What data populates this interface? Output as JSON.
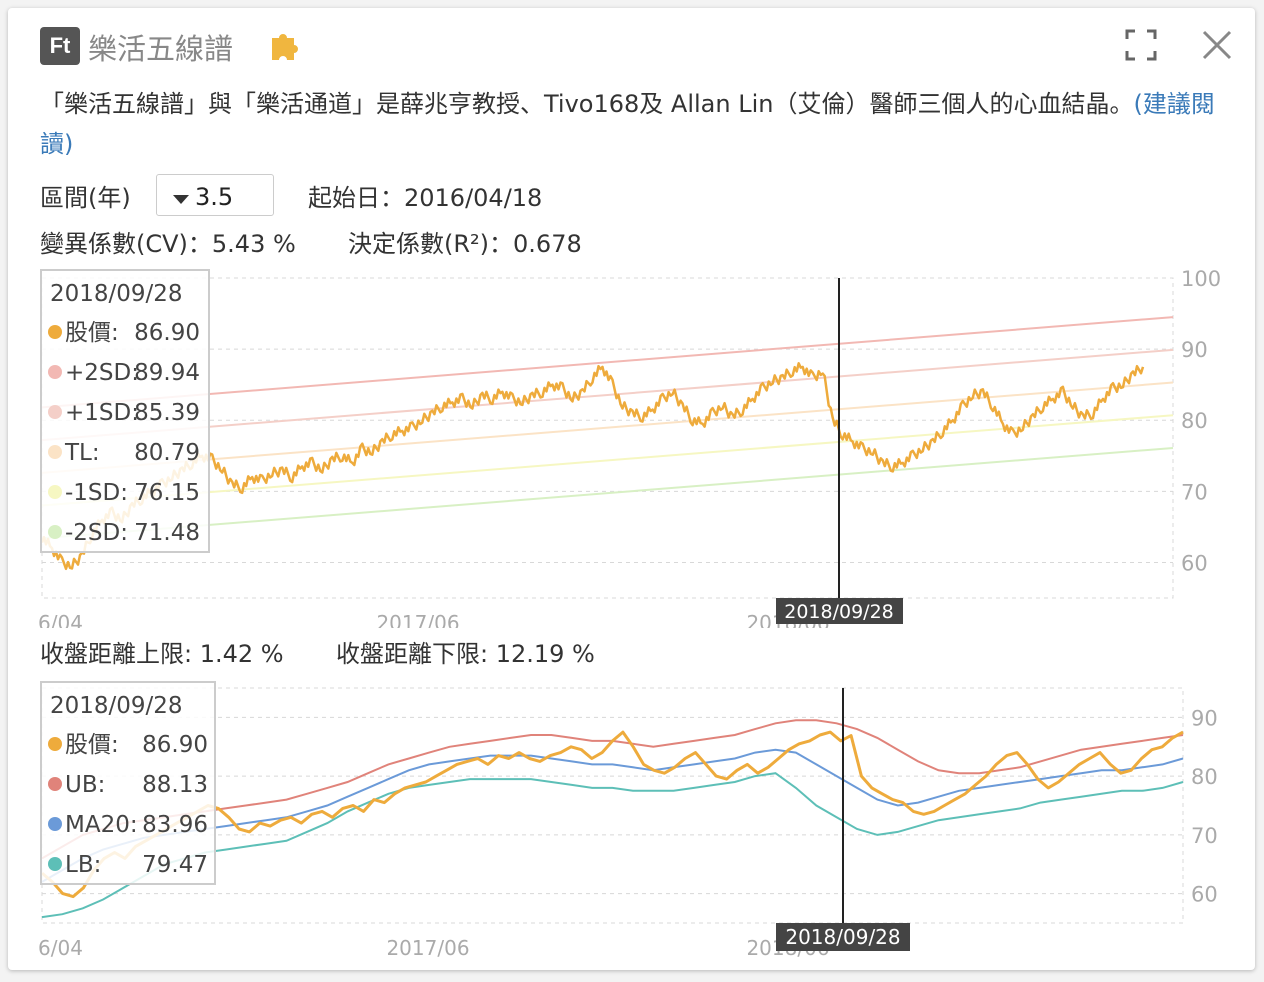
{
  "header": {
    "logo_text": "Ft",
    "title": "樂活五線譜",
    "puzzle_icon": "puzzle-icon",
    "expand_icon": "expand-icon",
    "close_icon": "close-icon"
  },
  "description": {
    "text": "「樂活五線譜」與「樂活通道」是薛兆亨教授、Tivo168及 Allan Lin（艾倫）醫師三個人的心血結晶。",
    "link": "(建議閱讀)"
  },
  "controls": {
    "period_label": "區間(年)",
    "period_value": "3.5",
    "start_label": "起始日：2016/04/18",
    "cv_label": "變異係數(CV)：5.43 %",
    "r2_label": "決定係數(R²)：0.678",
    "upper_label": "收盤距離上限: 1.42 %",
    "lower_label": "收盤距離下限: 12.19 %"
  },
  "colors": {
    "price": "#eeab3c",
    "plus2sd": "#f2b8b3",
    "plus1sd": "#f4cfc8",
    "tl": "#fbe3c6",
    "minus1sd": "#f6f7c2",
    "minus2sd": "#d8f0c4",
    "ub": "#e0837a",
    "ma20": "#6b9ad8",
    "lb": "#5dbfb7",
    "crosshair": "#222222",
    "grid": "#d8d8d8"
  },
  "chart_data": [
    {
      "type": "line",
      "name": "五線譜",
      "x_ticks": [
        "6/04",
        "2017/06",
        "2018/06"
      ],
      "y_ticks": [
        60,
        70,
        80,
        90,
        100
      ],
      "ylim": [
        55,
        100
      ],
      "crosshair_date": "2018/09/28",
      "tooltip": {
        "date": "2018/09/28",
        "rows": [
          {
            "label": "股價:",
            "value": "86.90",
            "color": "#eeab3c"
          },
          {
            "label": "+2SD:",
            "value": "89.94",
            "color": "#f2b8b3"
          },
          {
            "label": "+1SD:",
            "value": "85.39",
            "color": "#f4cfc8"
          },
          {
            "label": "TL:",
            "value": "80.79",
            "color": "#fbe3c6"
          },
          {
            "label": "-1SD:",
            "value": "76.15",
            "color": "#f6f7c2"
          },
          {
            "label": "-2SD:",
            "value": "71.48",
            "color": "#d8f0c4"
          }
        ]
      },
      "bands": [
        {
          "name": "+2SD",
          "start": 81.8,
          "end": 94.5
        },
        {
          "name": "+1SD",
          "start": 77.2,
          "end": 89.9
        },
        {
          "name": "TL",
          "start": 72.6,
          "end": 85.3
        },
        {
          "name": "-1SD",
          "start": 68.0,
          "end": 80.7
        },
        {
          "name": "-2SD",
          "start": 63.4,
          "end": 76.1
        }
      ],
      "price": [
        63.5,
        62,
        60,
        59.5,
        61,
        64,
        66,
        67,
        66,
        68,
        69,
        70,
        71,
        72,
        73,
        74,
        75,
        74.5,
        73,
        71,
        70.5,
        72,
        71.5,
        72.5,
        73,
        72,
        73.5,
        74,
        73,
        74.5,
        75,
        74,
        76,
        75.5,
        77,
        78,
        78.5,
        79,
        80,
        81,
        82,
        82.5,
        83,
        82,
        83.5,
        83,
        84,
        83,
        82.5,
        83.5,
        84,
        85,
        84.5,
        83,
        84,
        86,
        87.5,
        85,
        82,
        81,
        80.5,
        81.5,
        83,
        84,
        82,
        80,
        79.5,
        81,
        82,
        80.5,
        81.5,
        83,
        84.5,
        85.5,
        86,
        87,
        87.5,
        86,
        86.9,
        80,
        78,
        77,
        76,
        75.5,
        74,
        73.5,
        74,
        75,
        76,
        77,
        78.5,
        80,
        82,
        83.5,
        84,
        82,
        79.5,
        78,
        79,
        80.5,
        82,
        83,
        84,
        82,
        80.5,
        81,
        83,
        84.5,
        85,
        86.5,
        87.5
      ]
    },
    {
      "type": "line",
      "name": "樂活通道",
      "x_ticks": [
        "6/04",
        "2017/06",
        "2018/06"
      ],
      "y_ticks": [
        60,
        70,
        80,
        90
      ],
      "ylim": [
        55,
        95
      ],
      "crosshair_date": "2018/09/28",
      "tooltip": {
        "date": "2018/09/28",
        "rows": [
          {
            "label": "股價:",
            "value": "86.90",
            "color": "#eeab3c"
          },
          {
            "label": "UB:",
            "value": "88.13",
            "color": "#e0837a"
          },
          {
            "label": "MA20:",
            "value": "83.96",
            "color": "#6b9ad8"
          },
          {
            "label": "LB:",
            "value": "79.47",
            "color": "#5dbfb7"
          }
        ]
      },
      "ub": [
        66,
        68,
        70,
        71,
        72,
        72.5,
        73,
        73.5,
        74,
        74.5,
        75,
        75.5,
        76,
        77,
        78,
        79,
        80.5,
        82,
        83,
        84,
        85,
        85.5,
        86,
        86.5,
        87,
        87,
        86.5,
        86,
        86,
        85.5,
        85,
        85.5,
        86,
        86.5,
        87,
        88,
        89,
        89.5,
        89.5,
        89,
        88,
        86.5,
        84.5,
        82.5,
        81,
        80.5,
        80.5,
        81,
        81.5,
        82.5,
        83.5,
        84.5,
        85,
        85.5,
        86,
        86.5,
        87
      ],
      "ma20": [
        62,
        64,
        66,
        67.5,
        68.5,
        69.5,
        70,
        70.5,
        71,
        71.5,
        72,
        72.5,
        73,
        74,
        75,
        76.5,
        78,
        79.5,
        81,
        82,
        82.5,
        83,
        83.5,
        83.5,
        83.5,
        83,
        82.5,
        82,
        82,
        81.5,
        81,
        81.5,
        82,
        82.5,
        83,
        84,
        84.5,
        84,
        82,
        80,
        78,
        76,
        75,
        75.5,
        76.5,
        77.5,
        78,
        78.5,
        79,
        79.5,
        80,
        80.5,
        81,
        81,
        81.5,
        82,
        83
      ],
      "lb": [
        56,
        56.5,
        57.5,
        59,
        61,
        63,
        65,
        66,
        67,
        67.5,
        68,
        68.5,
        69,
        70.5,
        72,
        74,
        75.5,
        77,
        78,
        78.5,
        79,
        79.5,
        79.5,
        79.5,
        79.5,
        79,
        78.5,
        78,
        78,
        77.5,
        77.5,
        77.5,
        78,
        78.5,
        79,
        80,
        80.5,
        78,
        75,
        73,
        71,
        70,
        70.5,
        71.5,
        72.5,
        73,
        73.5,
        74,
        74.5,
        75.5,
        76,
        76.5,
        77,
        77.5,
        77.5,
        78,
        79
      ]
    }
  ]
}
